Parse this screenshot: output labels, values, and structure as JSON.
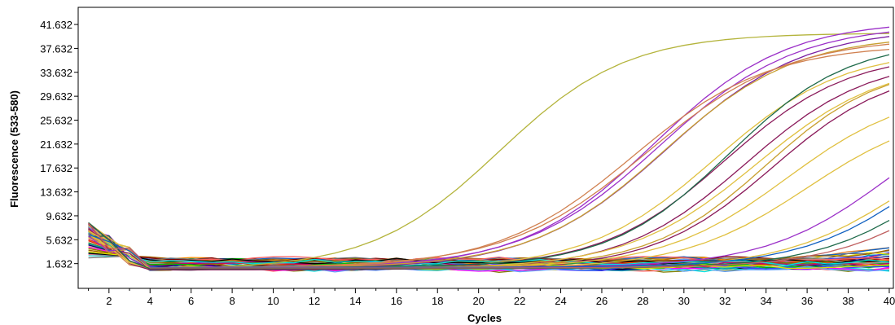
{
  "chart_data": {
    "type": "line",
    "title": "",
    "xlabel": "Cycles",
    "ylabel": "Fluorescence (533-580)",
    "xlim": [
      0.5,
      40.2
    ],
    "ylim": [
      -2.5,
      44.5
    ],
    "x_ticks": [
      2,
      4,
      6,
      8,
      10,
      12,
      14,
      16,
      18,
      20,
      22,
      24,
      26,
      28,
      30,
      32,
      34,
      36,
      38,
      40
    ],
    "x_tick_labels": [
      "2",
      "4",
      "6",
      "8",
      "10",
      "12",
      "14",
      "16",
      "18",
      "20",
      "22",
      "24",
      "26",
      "28",
      "30",
      "32",
      "34",
      "36",
      "38",
      "40"
    ],
    "y_ticks": [
      1.632,
      5.632,
      9.632,
      13.632,
      17.632,
      21.632,
      25.632,
      29.632,
      33.632,
      37.632,
      41.632
    ],
    "y_tick_labels": [
      "1.632",
      "5.632",
      "9.632",
      "13.632",
      "17.632",
      "21.632",
      "25.632",
      "29.632",
      "33.632",
      "37.632",
      "41.632"
    ],
    "grid": false,
    "legend": false,
    "x": [
      1,
      2,
      3,
      4,
      5,
      6,
      7,
      8,
      9,
      10,
      11,
      12,
      13,
      14,
      15,
      16,
      17,
      18,
      19,
      20,
      21,
      22,
      23,
      24,
      25,
      26,
      27,
      28,
      29,
      30,
      31,
      32,
      33,
      34,
      35,
      36,
      37,
      38,
      39,
      40
    ],
    "amplified_series": [
      {
        "color": "#b4b43c",
        "start": 0.6,
        "plateau": 39.6,
        "ct": 21.0,
        "slope": 3.1
      },
      {
        "color": "#9b30c8",
        "start": 0.8,
        "plateau": 41.5,
        "ct": 28.5,
        "slope": 3.2
      },
      {
        "color": "#9b30c8",
        "start": 0.9,
        "plateau": 40.8,
        "ct": 28.8,
        "slope": 3.3
      },
      {
        "color": "#7a1fa2",
        "start": 0.7,
        "plateau": 40.4,
        "ct": 29.2,
        "slope": 3.3
      },
      {
        "color": "#c8a030",
        "start": 0.9,
        "plateau": 39.0,
        "ct": 29.0,
        "slope": 3.2
      },
      {
        "color": "#d08050",
        "start": 1.0,
        "plateau": 38.5,
        "ct": 28.2,
        "slope": 3.4
      },
      {
        "color": "#d08050",
        "start": 0.8,
        "plateau": 37.5,
        "ct": 27.5,
        "slope": 3.3
      },
      {
        "color": "#e0c040",
        "start": 0.7,
        "plateau": 36.8,
        "ct": 31.5,
        "slope": 3.1
      },
      {
        "color": "#8a1a5a",
        "start": 0.9,
        "plateau": 36.0,
        "ct": 32.0,
        "slope": 3.0
      },
      {
        "color": "#1e6a4a",
        "start": 1.0,
        "plateau": 38.0,
        "ct": 32.2,
        "slope": 2.9
      },
      {
        "color": "#8a1a5a",
        "start": 0.6,
        "plateau": 35.5,
        "ct": 33.0,
        "slope": 3.0
      },
      {
        "color": "#e0c040",
        "start": 0.8,
        "plateau": 34.8,
        "ct": 33.5,
        "slope": 3.1
      },
      {
        "color": "#c8a030",
        "start": 1.0,
        "plateau": 34.2,
        "ct": 34.0,
        "slope": 2.8
      },
      {
        "color": "#8a1a5a",
        "start": 0.7,
        "plateau": 34.0,
        "ct": 34.3,
        "slope": 2.9
      },
      {
        "color": "#e0c040",
        "start": 0.9,
        "plateau": 30.0,
        "ct": 35.0,
        "slope": 3.0
      },
      {
        "color": "#e0c040",
        "start": 0.8,
        "plateau": 27.0,
        "ct": 36.0,
        "slope": 3.0
      },
      {
        "color": "#9b30c8",
        "start": 1.0,
        "plateau": 30.0,
        "ct": 40.0,
        "slope": 3.0
      },
      {
        "color": "#e0c040",
        "start": 0.9,
        "plateau": 25.0,
        "ct": 40.6,
        "slope": 2.9
      },
      {
        "color": "#1060c0",
        "start": 1.0,
        "plateau": 30.0,
        "ct": 42.0,
        "slope": 3.0
      },
      {
        "color": "#1e6a4a",
        "start": 0.8,
        "plateau": 30.0,
        "ct": 43.0,
        "slope": 3.0
      },
      {
        "color": "#c06060",
        "start": 0.9,
        "plateau": 30.0,
        "ct": 44.0,
        "slope": 3.0
      }
    ],
    "baseline_series_count": 44,
    "baseline_colors": [
      "#e07a20",
      "#ff8c00",
      "#20c0c0",
      "#1060c0",
      "#2aa02a",
      "#e02020",
      "#ff00ff",
      "#800000",
      "#000080",
      "#808000",
      "#00a0a0",
      "#a0a0a0",
      "#c00070",
      "#707070",
      "#00c000",
      "#4040ff",
      "#ff6060",
      "#60a0ff",
      "#a06000",
      "#000000",
      "#e0e000",
      "#00e0e0"
    ]
  }
}
